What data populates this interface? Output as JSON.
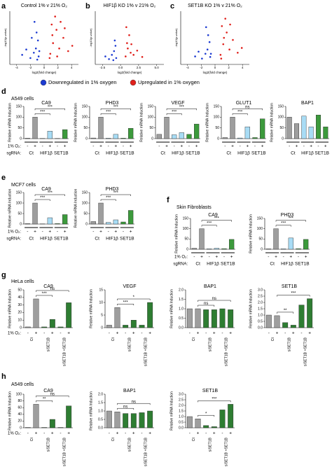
{
  "panels": [
    {
      "letter": "a"
    },
    {
      "letter": "b"
    },
    {
      "letter": "c"
    },
    {
      "letter": "d",
      "caption": "A549 cells"
    },
    {
      "letter": "e",
      "caption": "MCF7 cells"
    },
    {
      "letter": "f",
      "caption": "Skin Fibroblasts"
    },
    {
      "letter": "g",
      "caption": "HeLa cells"
    },
    {
      "letter": "h",
      "caption": "A549 cells"
    }
  ],
  "chart_data": [
    {
      "type": "scatter",
      "title": "Control 1% v 21% O₂",
      "xlabel": "log2(fold change)",
      "ylabel": "-log10(p-value)",
      "xlim": [
        -5,
        5
      ],
      "ylim": [
        0,
        10
      ],
      "xticks": [
        -4,
        -2,
        0,
        2,
        4
      ],
      "series": [
        {
          "name": "Downregulated in 1% oxygen",
          "color": "#1d3bd1",
          "x": [
            -0.8,
            -1.2,
            -1.5,
            -0.9,
            -2.0,
            -1.1,
            -2.6,
            -1.4,
            -0.7,
            -3.2,
            -1.8,
            -1.0
          ],
          "values": [
            1.5,
            3,
            2.2,
            4.5,
            1.2,
            6,
            2.8,
            8,
            2.5,
            1.8,
            5,
            0.9
          ]
        },
        {
          "name": "Upregulated in 1% oxygen",
          "color": "#e0201b",
          "x": [
            0.9,
            1.3,
            1.8,
            2.2,
            1.1,
            2.8,
            3.5,
            1.6,
            0.8,
            2.4,
            4.1,
            1.2,
            3.0,
            1.9
          ],
          "values": [
            2,
            4,
            6.5,
            3,
            7.5,
            5,
            2.5,
            9,
            1.2,
            8,
            3.5,
            5.5,
            6.8,
            1.5
          ]
        }
      ]
    },
    {
      "type": "scatter",
      "title": "HIF1β KO 1% v 21% O₂",
      "xlabel": "log2(fold change)",
      "ylabel": "-log10(p-value)",
      "xlim": [
        -3.5,
        6
      ],
      "ylim": [
        0,
        10
      ],
      "xticks": [
        {
          "value": -2.5,
          "label": "-2.5"
        },
        {
          "value": 0,
          "label": "0.0"
        },
        {
          "value": 2.5,
          "label": "2.5"
        },
        {
          "value": 5,
          "label": "5.0"
        }
      ],
      "series": [
        {
          "color": "#1d3bd1",
          "x": [
            -0.6,
            -0.9,
            -1.2,
            -0.7,
            -1.6,
            -0.8,
            -2.1,
            -1.0
          ],
          "values": [
            1.2,
            2.5,
            1.8,
            3.5,
            1.0,
            4.5,
            1.5,
            0.8
          ]
        },
        {
          "color": "#e0201b",
          "x": [
            0.7,
            1.0,
            1.4,
            0.9,
            1.8,
            2.3,
            1.2,
            0.8,
            3.0,
            1.5
          ],
          "values": [
            1.5,
            3,
            2.2,
            4,
            1.8,
            2.6,
            5.5,
            7,
            1.4,
            3.8
          ]
        }
      ]
    },
    {
      "type": "scatter",
      "title": "SET1B KO 1% v 21% O₂",
      "xlabel": "log2(fold change)",
      "ylabel": "-log10(p-value)",
      "xlim": [
        -5,
        5
      ],
      "ylim": [
        0,
        10
      ],
      "xticks": [
        -4,
        -2,
        0,
        2,
        4
      ],
      "series": [
        {
          "color": "#1d3bd1",
          "x": [
            -0.7,
            -1.1,
            -1.4,
            -0.8,
            -1.9,
            -1.0,
            -2.4,
            -1.3,
            -0.6,
            -2.9
          ],
          "values": [
            1.4,
            2.8,
            2.0,
            4.2,
            1.1,
            5.5,
            2.4,
            7,
            2.0,
            1.5
          ]
        },
        {
          "color": "#e0201b",
          "x": [
            0.8,
            1.2,
            1.7,
            2.1,
            1.0,
            2.6,
            3.3,
            1.5,
            0.9,
            2.2,
            3.9,
            1.3
          ],
          "values": [
            1.8,
            3.8,
            6,
            2.8,
            7.2,
            4.6,
            2.2,
            8.6,
            1.1,
            7.5,
            3.1,
            5
          ]
        }
      ]
    },
    {
      "type": "bar",
      "title": "CA9",
      "ylabel": "Relative mRNA Induction",
      "ylim": [
        0,
        150
      ],
      "yticks": [
        0,
        50,
        100,
        150
      ],
      "values": [
        2,
        100,
        1,
        35,
        1,
        42
      ],
      "colors": [
        "#9e9e9e",
        "#9e9e9e",
        "#a8dcf5",
        "#a8dcf5",
        "#3c9a3c",
        "#3c9a3c"
      ],
      "o2_label": "1% O₂:",
      "o2": [
        "-",
        "+",
        "-",
        "+",
        "-",
        "+"
      ],
      "group_label": "sgRNA:",
      "groups": [
        "Ct",
        "HIF1β",
        "SET1B"
      ],
      "significance": [
        "***",
        "***"
      ]
    },
    {
      "type": "bar",
      "title": "PHD3",
      "ylabel": "Relative mRNA Induction",
      "ylim": [
        0,
        150
      ],
      "yticks": [
        0,
        50,
        100,
        150
      ],
      "values": [
        3,
        100,
        2,
        20,
        2,
        48
      ],
      "colors": [
        "#9e9e9e",
        "#9e9e9e",
        "#a8dcf5",
        "#a8dcf5",
        "#3c9a3c",
        "#3c9a3c"
      ],
      "o2": [
        "-",
        "+",
        "-",
        "+",
        "-",
        "+"
      ],
      "groups": [
        "Ct",
        "HIF1β",
        "SET1B"
      ],
      "significance": [
        "***",
        "***"
      ]
    },
    {
      "type": "bar",
      "title": "VEGF",
      "ylabel": "Relative mRNA Induction",
      "ylim": [
        0,
        150
      ],
      "yticks": [
        0,
        50,
        100,
        150
      ],
      "values": [
        20,
        100,
        18,
        28,
        20,
        68
      ],
      "colors": [
        "#9e9e9e",
        "#9e9e9e",
        "#a8dcf5",
        "#a8dcf5",
        "#3c9a3c",
        "#3c9a3c"
      ],
      "o2": [
        "-",
        "+",
        "-",
        "+",
        "-",
        "+"
      ],
      "groups": [
        "Ct",
        "HIF1β",
        "SET1B"
      ],
      "significance": [
        "***",
        "***"
      ]
    },
    {
      "type": "bar",
      "title": "GLUT1",
      "ylabel": "Relative mRNA Induction",
      "ylim": [
        0,
        150
      ],
      "yticks": [
        0,
        50,
        100,
        150
      ],
      "values": [
        5,
        100,
        3,
        55,
        5,
        92
      ],
      "colors": [
        "#9e9e9e",
        "#9e9e9e",
        "#a8dcf5",
        "#a8dcf5",
        "#3c9a3c",
        "#3c9a3c"
      ],
      "o2": [
        "-",
        "+",
        "-",
        "+",
        "-",
        "+"
      ],
      "groups": [
        "Ct",
        "HIF1β",
        "SET1B"
      ],
      "significance": [
        "***",
        "ns"
      ]
    },
    {
      "type": "bar",
      "title": "BAP1",
      "ylabel": "Relative mRNA Induction",
      "ylim": [
        0,
        150
      ],
      "yticks": [
        0,
        50,
        100,
        150
      ],
      "values": [
        100,
        70,
        105,
        55,
        110,
        55
      ],
      "colors": [
        "#9e9e9e",
        "#9e9e9e",
        "#a8dcf5",
        "#a8dcf5",
        "#3c9a3c",
        "#3c9a3c"
      ],
      "o2": [
        "-",
        "+",
        "-",
        "+",
        "-",
        "+"
      ],
      "groups": [
        "Ct",
        "HIF1β",
        "SET1B"
      ]
    },
    {
      "type": "bar",
      "title": "CA9",
      "ylabel": "Relative mRNA Induction",
      "ylim": [
        0,
        150
      ],
      "yticks": [
        0,
        50,
        100,
        150
      ],
      "values": [
        2,
        100,
        1,
        30,
        2,
        45
      ],
      "colors": [
        "#9e9e9e",
        "#9e9e9e",
        "#a8dcf5",
        "#a8dcf5",
        "#3c9a3c",
        "#3c9a3c"
      ],
      "o2_label": "1% O₂:",
      "o2": [
        "-",
        "+",
        "-",
        "+",
        "-",
        "+"
      ],
      "group_label": "sgRNA:",
      "groups": [
        "Ct",
        "HIF1β",
        "SET1B"
      ],
      "significance": [
        "***",
        "***"
      ]
    },
    {
      "type": "bar",
      "title": "PHD3",
      "ylabel": "Relative mRNA Induction",
      "ylim": [
        0,
        150
      ],
      "yticks": [
        0,
        50,
        100,
        150
      ],
      "values": [
        12,
        100,
        8,
        20,
        10,
        65
      ],
      "colors": [
        "#9e9e9e",
        "#9e9e9e",
        "#a8dcf5",
        "#a8dcf5",
        "#3c9a3c",
        "#3c9a3c"
      ],
      "o2": [
        "-",
        "+",
        "-",
        "+",
        "-",
        "+"
      ],
      "groups": [
        "Ct",
        "HIF1β",
        "SET1B"
      ],
      "significance": [
        "***",
        "***"
      ]
    },
    {
      "type": "bar",
      "title": "CA9",
      "ylabel": "Relative mRNA Induction",
      "ylim": [
        0,
        150
      ],
      "yticks": [
        0,
        50,
        100,
        150
      ],
      "values": [
        5,
        100,
        2,
        5,
        3,
        48
      ],
      "colors": [
        "#9e9e9e",
        "#9e9e9e",
        "#a8dcf5",
        "#a8dcf5",
        "#3c9a3c",
        "#3c9a3c"
      ],
      "o2_label": "1% O₂:",
      "o2": [
        "-",
        "+",
        "-",
        "+",
        "-",
        "+"
      ],
      "group_label": "sgRNA:",
      "groups": [
        "Ct",
        "HIF1β",
        "SET1B"
      ],
      "significance": [
        "***",
        "***"
      ]
    },
    {
      "type": "bar",
      "title": "PHD3",
      "ylabel": "Relative mRNA Induction",
      "ylim": [
        0,
        150
      ],
      "yticks": [
        0,
        50,
        100,
        150
      ],
      "values": [
        2,
        100,
        2,
        55,
        3,
        48
      ],
      "colors": [
        "#9e9e9e",
        "#9e9e9e",
        "#a8dcf5",
        "#a8dcf5",
        "#3c9a3c",
        "#3c9a3c"
      ],
      "o2": [
        "-",
        "+",
        "-",
        "+",
        "-",
        "+"
      ],
      "groups": [
        "Ct",
        "HIF1β",
        "SET1B"
      ],
      "significance": [
        "***",
        "***"
      ]
    },
    {
      "type": "bar",
      "title": "CA9",
      "ylabel": "Relative mRNA Induction",
      "ylim": [
        0,
        50
      ],
      "yticks": [
        0,
        10,
        20,
        30,
        40,
        50
      ],
      "values": [
        1,
        38,
        1,
        11,
        1,
        33
      ],
      "colors": [
        "#9e9e9e",
        "#9e9e9e",
        "#2e7d32",
        "#2e7d32",
        "#2e7d32",
        "#2e7d32"
      ],
      "o2_label": "1% O₂:",
      "o2": [
        "-",
        "+",
        "-",
        "+",
        "-",
        "+"
      ],
      "groups": [
        "Ct",
        "siSET1B",
        "siSET1B +SET1B"
      ],
      "rotated_group_labels": true,
      "significance": [
        "***",
        "ns"
      ]
    },
    {
      "type": "bar",
      "title": "VEGF",
      "ylabel": "Relative mRNA Induction",
      "ylim": [
        0,
        15
      ],
      "yticks": [
        0,
        5,
        10,
        15
      ],
      "values": [
        1,
        8,
        1,
        3,
        1,
        10
      ],
      "colors": [
        "#9e9e9e",
        "#9e9e9e",
        "#2e7d32",
        "#2e7d32",
        "#2e7d32",
        "#2e7d32"
      ],
      "o2": [
        "-",
        "+",
        "-",
        "+",
        "-",
        "+"
      ],
      "groups": [
        "Ct",
        "siSET1B",
        "siSET1B +SET1B"
      ],
      "rotated_group_labels": true,
      "significance": [
        "***",
        "*"
      ]
    },
    {
      "type": "bar",
      "title": "BAP1",
      "ylabel": "Relative mRNA Induction",
      "ylim": [
        0,
        2
      ],
      "yticks": [
        {
          "value": 0,
          "label": "0.0"
        },
        0.5,
        {
          "value": 1,
          "label": "1.0"
        },
        1.5,
        {
          "value": 2,
          "label": "2.0"
        }
      ],
      "values": [
        1,
        1,
        0.95,
        0.95,
        1,
        0.95
      ],
      "colors": [
        "#9e9e9e",
        "#9e9e9e",
        "#2e7d32",
        "#2e7d32",
        "#2e7d32",
        "#2e7d32"
      ],
      "o2": [
        "-",
        "+",
        "-",
        "+",
        "-",
        "+"
      ],
      "groups": [
        "Ct",
        "siSET1B",
        "siSET1B +SET1B"
      ],
      "rotated_group_labels": true,
      "significance": [
        "ns",
        "ns"
      ]
    },
    {
      "type": "bar",
      "title": "SET1B",
      "ylabel": "Relative mRNA Induction",
      "ylim": [
        0,
        3
      ],
      "yticks": [
        {
          "value": 0,
          "label": "0.0"
        },
        0.5,
        {
          "value": 1,
          "label": "1.0"
        },
        1.5,
        {
          "value": 2,
          "label": "2.0"
        },
        2.5,
        {
          "value": 3,
          "label": "3.0"
        }
      ],
      "values": [
        1,
        0.95,
        0.4,
        0.2,
        1.8,
        2.3
      ],
      "colors": [
        "#9e9e9e",
        "#9e9e9e",
        "#2e7d32",
        "#2e7d32",
        "#2e7d32",
        "#2e7d32"
      ],
      "o2": [
        "-",
        "+",
        "-",
        "+",
        "-",
        "+"
      ],
      "groups": [
        "Ct",
        "siSET1B",
        "siSET1B +SET1B"
      ],
      "rotated_group_labels": true,
      "significance": [
        "**",
        "***"
      ]
    },
    {
      "type": "bar",
      "title": "CA9",
      "ylabel": "Relative mRNA Induction",
      "ylim": [
        0,
        100
      ],
      "yticks": [
        0,
        20,
        40,
        60,
        80,
        100
      ],
      "values": [
        1,
        70,
        1,
        25,
        1,
        65
      ],
      "colors": [
        "#9e9e9e",
        "#9e9e9e",
        "#2e7d32",
        "#2e7d32",
        "#2e7d32",
        "#2e7d32"
      ],
      "o2_label": "1% O₂:",
      "o2": [
        "-",
        "+",
        "-",
        "+",
        "-",
        "+"
      ],
      "groups": [
        "Ct",
        "siSET1B",
        "siSET1B +SET1B"
      ],
      "rotated_group_labels": true,
      "significance": [
        "**",
        "ns"
      ]
    },
    {
      "type": "bar",
      "title": "BAP1",
      "ylabel": "Relative mRNA Induction",
      "ylim": [
        0,
        2
      ],
      "yticks": [
        {
          "value": 0,
          "label": "0.0"
        },
        0.5,
        {
          "value": 1,
          "label": "1.0"
        },
        1.5,
        {
          "value": 2,
          "label": "2.0"
        }
      ],
      "values": [
        1,
        0.95,
        0.85,
        0.85,
        0.9,
        1
      ],
      "colors": [
        "#9e9e9e",
        "#9e9e9e",
        "#2e7d32",
        "#2e7d32",
        "#2e7d32",
        "#2e7d32"
      ],
      "o2": [
        "-",
        "+",
        "-",
        "+",
        "-",
        "+"
      ],
      "groups": [
        "Ct",
        "siSET1B",
        "siSET1B +SET1B"
      ],
      "rotated_group_labels": true,
      "significance": [
        "ns",
        "ns"
      ]
    },
    {
      "type": "bar",
      "title": "SET1B",
      "ylabel": "Relative mRNA Induction",
      "ylim": [
        0,
        3
      ],
      "yticks": [
        {
          "value": 0,
          "label": "0.0"
        },
        0.5,
        {
          "value": 1,
          "label": "1.0"
        },
        1.5,
        {
          "value": 2,
          "label": "2.0"
        },
        2.5,
        {
          "value": 3,
          "label": "3.0"
        }
      ],
      "values": [
        1,
        0.8,
        0.2,
        0.1,
        1.6,
        2.1
      ],
      "colors": [
        "#9e9e9e",
        "#9e9e9e",
        "#2e7d32",
        "#2e7d32",
        "#2e7d32",
        "#2e7d32"
      ],
      "o2": [
        "-",
        "+",
        "-",
        "+",
        "-",
        "+"
      ],
      "groups": [
        "Ct",
        "siSET1B",
        "siSET1B +SET1B"
      ],
      "rotated_group_labels": true,
      "significance": [
        "*",
        "***"
      ]
    }
  ]
}
